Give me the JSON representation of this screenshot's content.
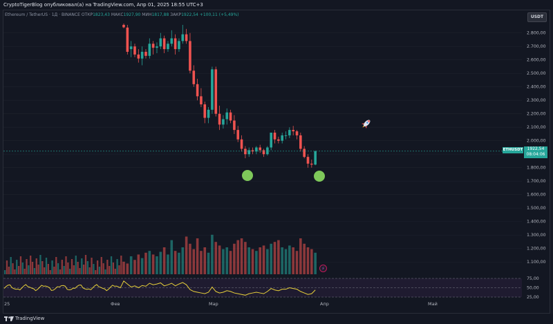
{
  "header": {
    "title": "CryptoTigerBlog опубликовал(а) на TradingView.com, Апр 01, 2025 18:55 UTC+3"
  },
  "legend": {
    "symbol": "Ethereum / TetherUS · 1Д · BINANCE",
    "open_label": "ОТКР",
    "open": "1823,43",
    "high_label": "МАКС",
    "high": "1927,90",
    "low_label": "МИН",
    "low": "1817,88",
    "close_label": "ЗАКР",
    "close": "1922,54",
    "change": "+100,11 (+5,49%)"
  },
  "currency_badge": "USDT",
  "price_label": {
    "ticker": "ETHUSDT",
    "price": "1922,54",
    "countdown": "08:04:06"
  },
  "indicator_marker": "⚡",
  "footer": {
    "brand": "TradingView"
  },
  "colors": {
    "up": "#26a69a",
    "down": "#ef5350",
    "rsi_line": "#e8d13a",
    "marker": "#7ec85a",
    "bg": "#131722"
  },
  "chart_data": {
    "type": "candlestick",
    "y_axis_ticks": [
      "2.800,00",
      "2.700,00",
      "2.600,00",
      "2.500,00",
      "2.400,00",
      "2.300,00",
      "2.200,00",
      "2.100,00",
      "2.000,00",
      "1.900,00",
      "1.800,00",
      "1.700,00",
      "1.600,00",
      "1.500,00",
      "1.400,00",
      "1.300,00",
      "1.200,00",
      "1.100,00"
    ],
    "y_range": [
      1050,
      2860
    ],
    "x_labels": [
      "25",
      "Фев",
      "Мар",
      "Апр",
      "Май"
    ],
    "rsi_ticks": [
      "75,00",
      "50,00",
      "25,00"
    ],
    "last_price": 1922.54,
    "candles": [
      {
        "o": 2860,
        "h": 2870,
        "l": 2835,
        "c": 2842
      },
      {
        "o": 2840,
        "h": 2860,
        "l": 2640,
        "c": 2660
      },
      {
        "o": 2680,
        "h": 2740,
        "l": 2620,
        "c": 2700
      },
      {
        "o": 2700,
        "h": 2720,
        "l": 2620,
        "c": 2640
      },
      {
        "o": 2640,
        "h": 2680,
        "l": 2580,
        "c": 2610
      },
      {
        "o": 2610,
        "h": 2700,
        "l": 2560,
        "c": 2660
      },
      {
        "o": 2660,
        "h": 2680,
        "l": 2610,
        "c": 2630
      },
      {
        "o": 2630,
        "h": 2760,
        "l": 2610,
        "c": 2720
      },
      {
        "o": 2720,
        "h": 2740,
        "l": 2640,
        "c": 2690
      },
      {
        "o": 2690,
        "h": 2730,
        "l": 2650,
        "c": 2700
      },
      {
        "o": 2700,
        "h": 2800,
        "l": 2680,
        "c": 2760
      },
      {
        "o": 2760,
        "h": 2780,
        "l": 2650,
        "c": 2680
      },
      {
        "o": 2680,
        "h": 2740,
        "l": 2660,
        "c": 2720
      },
      {
        "o": 2720,
        "h": 2820,
        "l": 2700,
        "c": 2760
      },
      {
        "o": 2760,
        "h": 2790,
        "l": 2640,
        "c": 2680
      },
      {
        "o": 2680,
        "h": 2760,
        "l": 2660,
        "c": 2740
      },
      {
        "o": 2740,
        "h": 2860,
        "l": 2720,
        "c": 2790
      },
      {
        "o": 2790,
        "h": 2830,
        "l": 2720,
        "c": 2740
      },
      {
        "o": 2740,
        "h": 2800,
        "l": 2500,
        "c": 2520
      },
      {
        "o": 2520,
        "h": 2560,
        "l": 2400,
        "c": 2420
      },
      {
        "o": 2420,
        "h": 2460,
        "l": 2300,
        "c": 2330
      },
      {
        "o": 2330,
        "h": 2390,
        "l": 2250,
        "c": 2270
      },
      {
        "o": 2270,
        "h": 2290,
        "l": 2130,
        "c": 2170
      },
      {
        "o": 2170,
        "h": 2250,
        "l": 2130,
        "c": 2230
      },
      {
        "o": 2230,
        "h": 2550,
        "l": 2200,
        "c": 2530
      },
      {
        "o": 2530,
        "h": 2550,
        "l": 2180,
        "c": 2200
      },
      {
        "o": 2200,
        "h": 2260,
        "l": 2080,
        "c": 2120
      },
      {
        "o": 2120,
        "h": 2190,
        "l": 2090,
        "c": 2160
      },
      {
        "o": 2160,
        "h": 2240,
        "l": 2120,
        "c": 2210
      },
      {
        "o": 2210,
        "h": 2230,
        "l": 2130,
        "c": 2150
      },
      {
        "o": 2150,
        "h": 2190,
        "l": 2050,
        "c": 2080
      },
      {
        "o": 2080,
        "h": 2110,
        "l": 1990,
        "c": 2010
      },
      {
        "o": 2010,
        "h": 2040,
        "l": 1920,
        "c": 1940
      },
      {
        "o": 1940,
        "h": 1960,
        "l": 1870,
        "c": 1900
      },
      {
        "o": 1900,
        "h": 1950,
        "l": 1880,
        "c": 1930
      },
      {
        "o": 1930,
        "h": 1950,
        "l": 1900,
        "c": 1920
      },
      {
        "o": 1920,
        "h": 1960,
        "l": 1900,
        "c": 1950
      },
      {
        "o": 1950,
        "h": 1970,
        "l": 1910,
        "c": 1930
      },
      {
        "o": 1930,
        "h": 1940,
        "l": 1880,
        "c": 1900
      },
      {
        "o": 1900,
        "h": 1960,
        "l": 1890,
        "c": 1950
      },
      {
        "o": 1950,
        "h": 2060,
        "l": 1930,
        "c": 2060
      },
      {
        "o": 2060,
        "h": 2080,
        "l": 1980,
        "c": 2010
      },
      {
        "o": 2010,
        "h": 2030,
        "l": 1980,
        "c": 2000
      },
      {
        "o": 2000,
        "h": 2060,
        "l": 1980,
        "c": 2040
      },
      {
        "o": 2040,
        "h": 2070,
        "l": 2010,
        "c": 2040
      },
      {
        "o": 2040,
        "h": 2100,
        "l": 2020,
        "c": 2080
      },
      {
        "o": 2080,
        "h": 2110,
        "l": 2040,
        "c": 2070
      },
      {
        "o": 2070,
        "h": 2080,
        "l": 2010,
        "c": 2040
      },
      {
        "o": 2040,
        "h": 2060,
        "l": 1920,
        "c": 1940
      },
      {
        "o": 1940,
        "h": 1960,
        "l": 1870,
        "c": 1880
      },
      {
        "o": 1880,
        "h": 1900,
        "l": 1800,
        "c": 1830
      },
      {
        "o": 1830,
        "h": 1860,
        "l": 1800,
        "c": 1823
      },
      {
        "o": 1823,
        "h": 1928,
        "l": 1818,
        "c": 1922
      }
    ],
    "volume": [
      14,
      12,
      20,
      16,
      22,
      18,
      24,
      26,
      22,
      20,
      25,
      30,
      22,
      38,
      26,
      24,
      30,
      42,
      34,
      28,
      40,
      26,
      30,
      24,
      44,
      36,
      32,
      28,
      30,
      26,
      34,
      38,
      40,
      36,
      30,
      28,
      26,
      30,
      32,
      28,
      34,
      36,
      38,
      30,
      28,
      32,
      30,
      26,
      40,
      34,
      30,
      28,
      24
    ],
    "rsi": [
      68,
      60,
      52,
      55,
      50,
      56,
      54,
      62,
      58,
      60,
      63,
      55,
      58,
      62,
      55,
      60,
      64,
      58,
      45,
      40,
      38,
      36,
      34,
      38,
      52,
      40,
      36,
      38,
      42,
      40,
      36,
      34,
      32,
      30,
      34,
      36,
      38,
      36,
      34,
      40,
      48,
      44,
      42,
      46,
      46,
      50,
      48,
      46,
      40,
      36,
      32,
      34,
      44
    ]
  }
}
